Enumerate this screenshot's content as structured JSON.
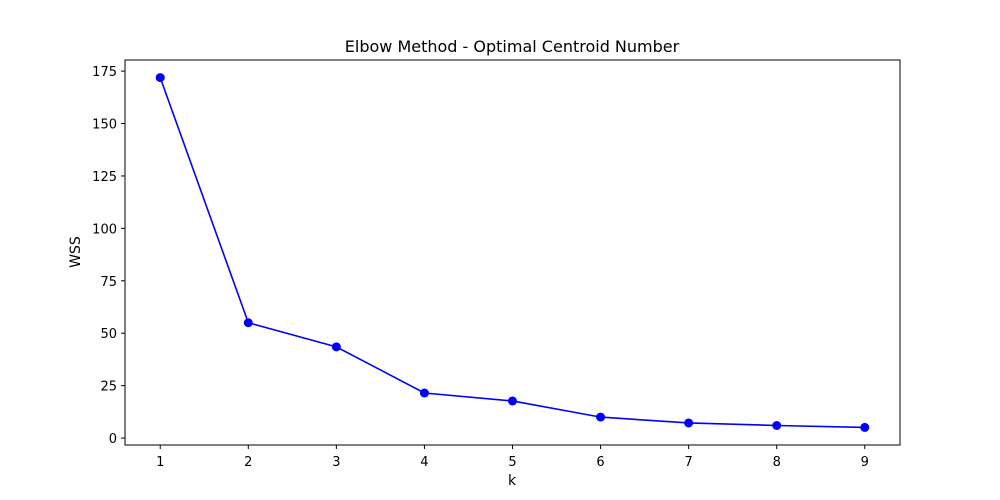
{
  "chart_data": {
    "type": "line",
    "title": "Elbow Method - Optimal Centroid Number",
    "xlabel": "k",
    "ylabel": "WSS",
    "x": [
      1,
      2,
      3,
      4,
      5,
      6,
      7,
      8,
      9
    ],
    "series": [
      {
        "values": [
          171.9,
          55.0,
          43.5,
          21.5,
          17.7,
          10.0,
          7.2,
          6.0,
          5.1
        ],
        "color": "#0000ff",
        "marker": "circle"
      }
    ],
    "xlim": [
      0.6,
      9.4
    ],
    "ylim": [
      -3.3,
      180.3
    ],
    "xticks": [
      1,
      2,
      3,
      4,
      5,
      6,
      7,
      8,
      9
    ],
    "yticks": [
      0,
      25,
      50,
      75,
      100,
      125,
      150,
      175
    ],
    "grid": false
  }
}
